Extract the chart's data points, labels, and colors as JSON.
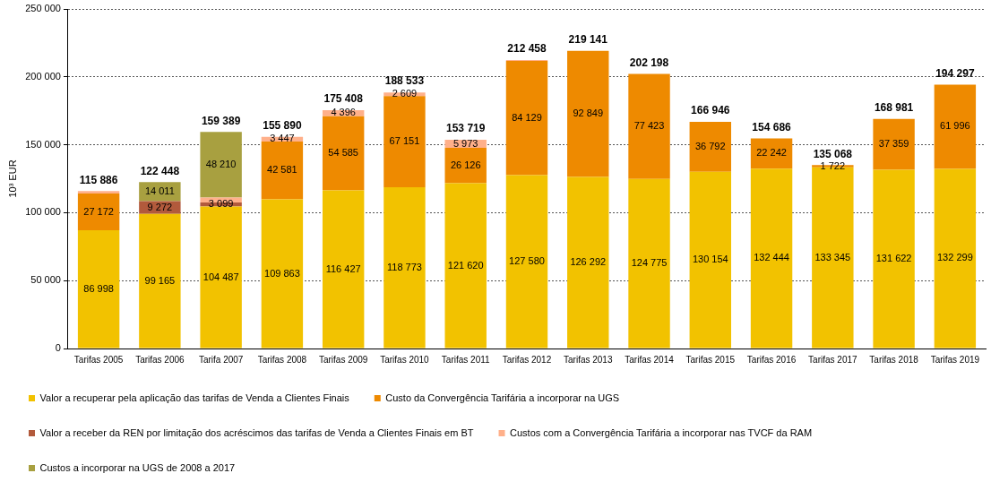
{
  "chart_data": {
    "type": "bar",
    "stacked": true,
    "ylabel": "10³ EUR",
    "categories": [
      "Tarifas 2005",
      "Tarifas 2006",
      "Tarifa 2007",
      "Tarifas 2008",
      "Tarifas 2009",
      "Tarifas 2010",
      "Tarifas 2011",
      "Tarifas 2012",
      "Tarifas 2013",
      "Tarifas 2014",
      "Tarifas 2015",
      "Tarifas 2016",
      "Tarifas 2017",
      "Tarifas 2018",
      "Tarifas 2019"
    ],
    "series": [
      {
        "name": "Valor a recuperar pela aplicação das tarifas de Venda a Clientes Finais",
        "color": "#f2c200",
        "values": [
          86998,
          99165,
          104487,
          109863,
          116427,
          118773,
          121620,
          127580,
          126292,
          124775,
          130154,
          132444,
          133345,
          131622,
          132299
        ],
        "value_labels": [
          "86 998",
          "99 165",
          "104 487",
          "109 863",
          "116 427",
          "118 773",
          "121 620",
          "127 580",
          "126 292",
          "124 775",
          "130 154",
          "132 444",
          "133 345",
          "131 622",
          "132 299"
        ]
      },
      {
        "name": "Custo da Convergência Tarifária a incorporar na UGS",
        "color": "#ee8a00",
        "values": [
          27172,
          null,
          null,
          42581,
          54585,
          67151,
          26126,
          84129,
          92849,
          77423,
          36792,
          22242,
          1722,
          37359,
          61996
        ],
        "value_labels": [
          "27 172",
          null,
          null,
          "42 581",
          "54 585",
          "67 151",
          "26 126",
          "84 129",
          "92 849",
          "77 423",
          "36 792",
          "22 242",
          "1 722",
          "37 359",
          "61 996"
        ]
      },
      {
        "name": "Valor a receber da REN por limitação dos acréscimos das tarifas de Venda a Clientes Finais em BT",
        "color": "#b25a3c",
        "values": [
          null,
          9272,
          3099,
          null,
          null,
          null,
          null,
          null,
          null,
          null,
          null,
          null,
          null,
          null,
          null
        ],
        "value_labels": [
          null,
          "9 272",
          "3 099",
          null,
          null,
          null,
          null,
          null,
          null,
          null,
          null,
          null,
          null,
          null,
          null
        ]
      },
      {
        "name": "Custos com a Convergência Tarifária a incorporar nas TVCF da RAM",
        "color": "#ffb08a",
        "values": [
          1716,
          null,
          3593,
          3447,
          4396,
          2609,
          5973,
          749,
          null,
          null,
          null,
          null,
          null,
          null,
          null
        ],
        "value_labels": [
          null,
          null,
          null,
          "3 447",
          "4 396",
          "2 609",
          "5 973",
          null,
          null,
          null,
          null,
          null,
          null,
          null,
          null
        ]
      },
      {
        "name": "Custos a incorporar na UGS de 2008 a 2017",
        "color": "#a8a040",
        "values": [
          null,
          14011,
          48210,
          null,
          null,
          null,
          null,
          null,
          null,
          null,
          null,
          null,
          null,
          null,
          null
        ],
        "value_labels": [
          null,
          "14 011",
          "48 210",
          null,
          null,
          null,
          null,
          null,
          null,
          null,
          null,
          null,
          null,
          null,
          null
        ]
      }
    ],
    "totals": [
      "115 886",
      "122 448",
      "159 389",
      "155 890",
      "175 408",
      "188 533",
      "153 719",
      "212 458",
      "219 141",
      "202 198",
      "166 946",
      "154 686",
      "135 068",
      "168 981",
      "194 297"
    ],
    "ylim": [
      0,
      250000
    ],
    "yticks": [
      0,
      {
        "value": 50000,
        "label": "50 000"
      },
      {
        "value": 100000,
        "label": "100 000"
      },
      {
        "value": 150000,
        "label": "150 000"
      },
      {
        "value": 200000,
        "label": "200 000"
      },
      {
        "value": 250000,
        "label": "250 000"
      }
    ],
    "grid": "y",
    "legend": "bottom"
  }
}
